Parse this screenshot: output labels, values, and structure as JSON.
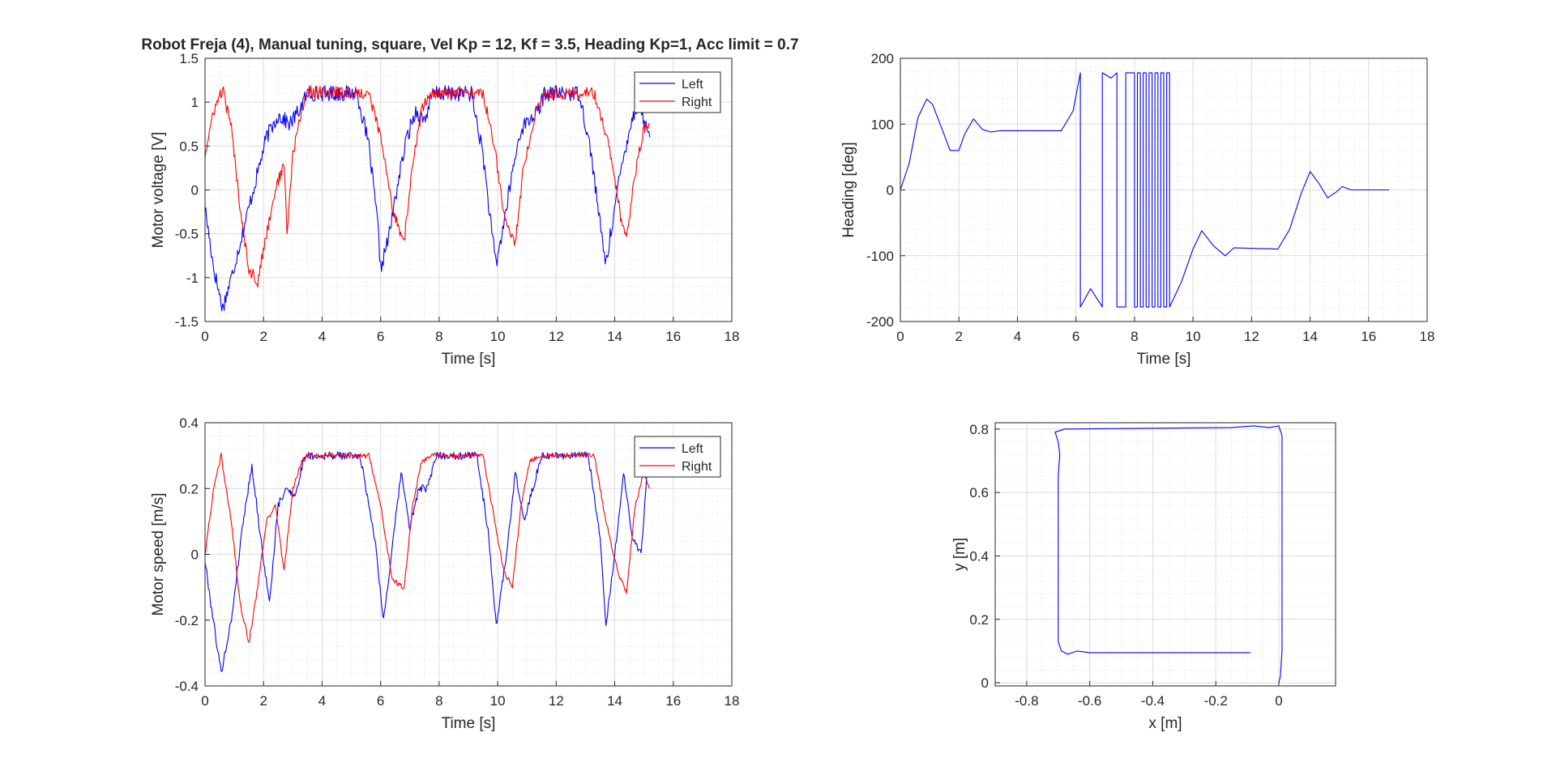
{
  "figure": {
    "title": "Robot Freja (4), Manual tuning, square, Vel Kp = 12, Kf = 3.5, Heading Kp=1, Acc limit = 0.7",
    "colors": {
      "left": "#0000ff",
      "right": "#ff0000",
      "axis": "#262626",
      "grid": "#dcdcdc",
      "minor_grid": "#ececec"
    }
  },
  "chart_data": [
    {
      "id": "voltage",
      "type": "line",
      "title": "Robot Freja (4), Manual tuning, square, Vel Kp = 12, Kf = 3.5, Heading Kp=1, Acc limit = 0.7",
      "xlabel": "Time [s]",
      "ylabel": "Motor voltage [V]",
      "xlim": [
        0,
        18
      ],
      "ylim": [
        -1.5,
        1.5
      ],
      "xticks": [
        0,
        2,
        4,
        6,
        8,
        10,
        12,
        14,
        16,
        18
      ],
      "yticks": [
        -1.5,
        -1,
        -0.5,
        0,
        0.5,
        1,
        1.5
      ],
      "xtick_labels": [
        "0",
        "2",
        "4",
        "6",
        "8",
        "10",
        "12",
        "14",
        "16",
        "18"
      ],
      "ytick_labels": [
        "-1.5",
        "-1",
        "-0.5",
        "0",
        "0.5",
        "1",
        "1.5"
      ],
      "grid": true,
      "legend": "top-right",
      "series": [
        {
          "name": "Left",
          "color": "#0000ff",
          "noise": 0.09,
          "x": [
            0,
            0.3,
            0.6,
            0.9,
            1.2,
            1.5,
            1.8,
            2.1,
            2.5,
            2.9,
            3.2,
            3.5,
            5.2,
            5.6,
            5.9,
            6.0,
            6.3,
            6.6,
            6.9,
            7.2,
            7.5,
            7.8,
            9.1,
            9.5,
            9.8,
            9.95,
            10.2,
            10.5,
            10.8,
            11.1,
            11.4,
            11.6,
            12.8,
            13.2,
            13.5,
            13.7,
            13.9,
            14.2,
            14.5,
            14.8,
            15.1,
            15.2
          ],
          "y": [
            -0.2,
            -0.9,
            -1.35,
            -1.0,
            -0.6,
            -0.2,
            0.2,
            0.6,
            0.85,
            0.75,
            0.9,
            1.1,
            1.1,
            0.5,
            -0.4,
            -0.9,
            -0.5,
            0.1,
            0.6,
            0.9,
            0.8,
            1.1,
            1.1,
            0.4,
            -0.5,
            -0.85,
            -0.4,
            0.2,
            0.7,
            0.8,
            0.9,
            1.1,
            1.1,
            0.4,
            -0.4,
            -0.85,
            -0.4,
            0.2,
            0.7,
            1.0,
            0.7,
            0.6
          ]
        },
        {
          "name": "Right",
          "color": "#ff0000",
          "noise": 0.07,
          "x": [
            0,
            0.3,
            0.6,
            0.9,
            1.2,
            1.5,
            1.8,
            2.1,
            2.4,
            2.7,
            2.8,
            3.0,
            3.3,
            3.5,
            5.6,
            6.0,
            6.4,
            6.8,
            7.1,
            7.4,
            7.7,
            9.5,
            9.9,
            10.2,
            10.6,
            10.9,
            11.3,
            11.6,
            13.3,
            13.8,
            14.2,
            14.4,
            14.7,
            15.0,
            15.2
          ],
          "y": [
            0.4,
            0.9,
            1.15,
            0.7,
            -0.2,
            -0.9,
            -1.05,
            -0.5,
            0.0,
            0.3,
            -0.5,
            0.4,
            0.9,
            1.12,
            1.1,
            0.6,
            -0.2,
            -0.6,
            0.3,
            0.9,
            1.1,
            1.1,
            0.5,
            -0.3,
            -0.6,
            0.3,
            0.9,
            1.1,
            1.1,
            0.5,
            -0.3,
            -0.6,
            0.2,
            0.7,
            0.75
          ]
        }
      ]
    },
    {
      "id": "heading",
      "type": "line",
      "xlabel": "Time [s]",
      "ylabel": "Heading [deg]",
      "xlim": [
        0,
        18
      ],
      "ylim": [
        -200,
        200
      ],
      "xticks": [
        0,
        2,
        4,
        6,
        8,
        10,
        12,
        14,
        16,
        18
      ],
      "yticks": [
        -200,
        -100,
        0,
        100,
        200
      ],
      "xtick_labels": [
        "0",
        "2",
        "4",
        "6",
        "8",
        "10",
        "12",
        "14",
        "16",
        "18"
      ],
      "ytick_labels": [
        "-200",
        "-100",
        "0",
        "100",
        "200"
      ],
      "grid": true,
      "series": [
        {
          "name": "",
          "color": "#0000ff",
          "x": [
            0,
            0.3,
            0.6,
            0.9,
            1.1,
            1.4,
            1.7,
            2.0,
            2.2,
            2.5,
            2.8,
            3.1,
            3.4,
            5.5,
            5.9,
            6.15,
            6.15,
            6.5,
            6.9,
            6.9,
            7.2,
            7.4,
            7.4,
            7.7,
            7.7,
            8.0,
            8.0,
            8.1,
            8.1,
            8.2,
            8.2,
            8.3,
            8.3,
            8.4,
            8.4,
            8.5,
            8.5,
            8.6,
            8.6,
            8.7,
            8.7,
            8.8,
            8.8,
            8.9,
            8.9,
            9.0,
            9.0,
            9.1,
            9.1,
            9.2,
            9.2,
            9.6,
            10.0,
            10.3,
            10.7,
            11.1,
            11.4,
            12.9,
            13.3,
            13.7,
            14.0,
            14.3,
            14.6,
            14.9,
            15.1,
            15.4,
            16.7
          ],
          "y": [
            0,
            40,
            110,
            138,
            130,
            95,
            60,
            60,
            85,
            108,
            92,
            88,
            90,
            90,
            120,
            178,
            -178,
            -150,
            -178,
            178,
            170,
            178,
            -178,
            -178,
            178,
            178,
            -178,
            -178,
            178,
            178,
            -178,
            -178,
            178,
            178,
            -178,
            -178,
            178,
            178,
            -178,
            -178,
            178,
            178,
            -178,
            -178,
            178,
            178,
            -178,
            -178,
            178,
            178,
            -178,
            -140,
            -90,
            -62,
            -85,
            -100,
            -88,
            -90,
            -60,
            -5,
            28,
            10,
            -12,
            -3,
            5,
            0,
            0
          ]
        }
      ]
    },
    {
      "id": "speed",
      "type": "line",
      "xlabel": "Time [s]",
      "ylabel": "Motor speed [m/s]",
      "xlim": [
        0,
        18
      ],
      "ylim": [
        -0.4,
        0.4
      ],
      "xticks": [
        0,
        2,
        4,
        6,
        8,
        10,
        12,
        14,
        16,
        18
      ],
      "yticks": [
        -0.4,
        -0.2,
        0,
        0.2,
        0.4
      ],
      "xtick_labels": [
        "0",
        "2",
        "4",
        "6",
        "8",
        "10",
        "12",
        "14",
        "16",
        "18"
      ],
      "ytick_labels": [
        "-0.4",
        "-0.2",
        "0",
        "0.2",
        "0.4"
      ],
      "grid": true,
      "legend": "top-right",
      "series": [
        {
          "name": "Left",
          "color": "#0000ff",
          "noise": 0.012,
          "x": [
            0,
            0.2,
            0.55,
            0.9,
            1.3,
            1.6,
            1.9,
            2.2,
            2.5,
            2.8,
            3.1,
            3.4,
            5.3,
            5.8,
            6.1,
            6.4,
            6.7,
            7.0,
            7.3,
            7.6,
            7.9,
            9.3,
            9.7,
            9.95,
            10.3,
            10.6,
            10.9,
            11.2,
            11.5,
            11.7,
            13.1,
            13.5,
            13.7,
            14.0,
            14.3,
            14.6,
            14.9,
            15.1,
            15.3
          ],
          "y": [
            -0.02,
            -0.15,
            -0.36,
            -0.2,
            0.1,
            0.27,
            0.05,
            -0.15,
            0.15,
            0.2,
            0.18,
            0.3,
            0.3,
            0.05,
            -0.2,
            0.02,
            0.25,
            0.08,
            0.2,
            0.2,
            0.3,
            0.3,
            0.05,
            -0.22,
            0.0,
            0.25,
            0.1,
            0.2,
            0.3,
            0.3,
            0.3,
            0.05,
            -0.22,
            0.0,
            0.25,
            0.05,
            0.0,
            0.25,
            0.25
          ]
        },
        {
          "name": "Right",
          "color": "#ff0000",
          "noise": 0.008,
          "x": [
            0,
            0.3,
            0.55,
            0.9,
            1.2,
            1.5,
            1.8,
            2.1,
            2.4,
            2.7,
            3.0,
            3.3,
            3.5,
            5.6,
            6.0,
            6.4,
            6.8,
            7.1,
            7.4,
            7.7,
            9.5,
            9.9,
            10.2,
            10.5,
            10.8,
            11.1,
            11.4,
            11.6,
            13.3,
            13.7,
            14.1,
            14.4,
            14.7,
            15.0,
            15.2
          ],
          "y": [
            0,
            0.2,
            0.3,
            0.1,
            -0.15,
            -0.27,
            -0.1,
            0.1,
            0.15,
            -0.05,
            0.2,
            0.28,
            0.3,
            0.3,
            0.15,
            -0.08,
            -0.1,
            0.15,
            0.28,
            0.3,
            0.3,
            0.1,
            -0.05,
            -0.1,
            0.15,
            0.28,
            0.3,
            0.3,
            0.3,
            0.1,
            -0.05,
            -0.12,
            0.15,
            0.25,
            0.2
          ]
        }
      ]
    },
    {
      "id": "xy",
      "type": "line",
      "xlabel": "x [m]",
      "ylabel": "y [m]",
      "xlim": [
        -0.9,
        0.18
      ],
      "ylim": [
        -0.01,
        0.82
      ],
      "xticks": [
        -0.8,
        -0.6,
        -0.4,
        -0.2,
        0
      ],
      "yticks": [
        0,
        0.2,
        0.4,
        0.6,
        0.8
      ],
      "xtick_labels": [
        "-0.8",
        "-0.6",
        "-0.4",
        "-0.2",
        "0"
      ],
      "ytick_labels": [
        "0",
        "0.2",
        "0.4",
        "0.6",
        "0.8"
      ],
      "grid": true,
      "series": [
        {
          "name": "",
          "color": "#0000ff",
          "x": [
            0,
            0.005,
            0.01,
            0.01,
            0.0,
            -0.03,
            -0.08,
            -0.15,
            -0.68,
            -0.71,
            -0.7,
            -0.695,
            -0.7,
            -0.7,
            -0.7,
            -0.69,
            -0.67,
            -0.64,
            -0.6,
            -0.09
          ],
          "y": [
            0,
            0.02,
            0.1,
            0.78,
            0.81,
            0.805,
            0.81,
            0.805,
            0.8,
            0.79,
            0.76,
            0.72,
            0.65,
            0.2,
            0.13,
            0.1,
            0.09,
            0.1,
            0.095,
            0.095
          ]
        }
      ]
    }
  ]
}
